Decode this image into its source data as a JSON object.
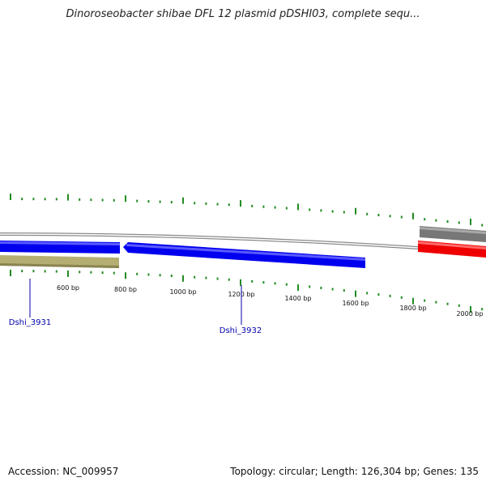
{
  "title": "Dinoroseobacter shibae DFL 12 plasmid pDSHI03, complete sequ...",
  "footer": {
    "accession": "Accession: NC_009957",
    "stats": "Topology: circular; Length: 126,304 bp; Genes: 135"
  },
  "scale_labels": [
    "600 bp",
    "800 bp",
    "1000 bp",
    "1200 bp",
    "1400 bp",
    "1600 bp",
    "1800 bp",
    "2000 bp"
  ],
  "gene_labels": [
    "Dshi_3931",
    "Dshi_3932"
  ],
  "colors": {
    "backbone": "#8a8a8a",
    "gene_forward": "#0000ee",
    "gene_other": "#b5ae72",
    "gene_gray": "#777777",
    "gene_red": "#ee0000",
    "ticks": "#228b22",
    "gene_label": "#0000aa"
  }
}
